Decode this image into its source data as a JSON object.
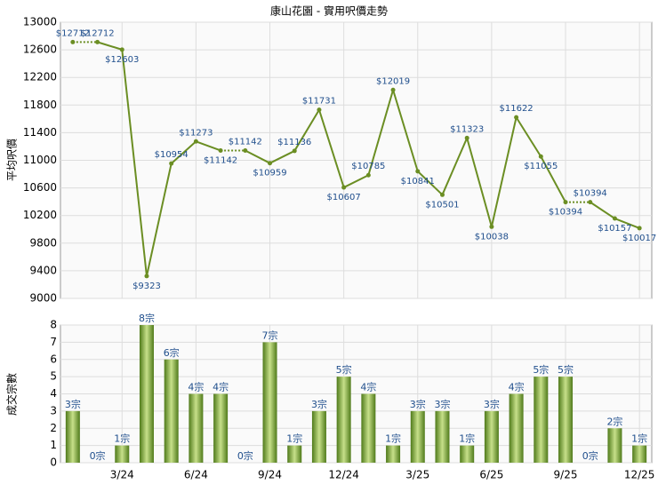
{
  "chart_data": [
    {
      "type": "line",
      "title": "康山花園 - 實用呎價走勢",
      "y_label": "平均呎價",
      "color": "#6b8e23",
      "values": [
        12712,
        12712,
        12603,
        9323,
        10954,
        11273,
        11142,
        11142,
        10959,
        11136,
        11731,
        10607,
        10785,
        12019,
        10841,
        10501,
        11323,
        10038,
        11622,
        11055,
        10394,
        10394,
        10157,
        10017
      ],
      "value_labels": [
        "$12712",
        "$12712",
        "$12603",
        "$9323",
        "$10954",
        "$11273",
        "$11142",
        "$11142",
        "$10959",
        "$11136",
        "$11731",
        "$10607",
        "$10785",
        "$12019",
        "$10841",
        "$10501",
        "$11323",
        "$10038",
        "$11622",
        "$11055",
        "$10394",
        "$10394",
        "$10157",
        "$10017"
      ],
      "ylim": [
        9000,
        13000
      ],
      "yticks": [
        9000,
        9400,
        9800,
        10200,
        10600,
        11000,
        11400,
        11800,
        12200,
        12600,
        13000
      ],
      "grid": true
    },
    {
      "type": "bar",
      "y_label": "成交宗數",
      "color": "#7aa32e",
      "categories": [
        null,
        null,
        "3/24",
        null,
        null,
        "6/24",
        null,
        null,
        "9/24",
        null,
        null,
        "12/24",
        null,
        null,
        "3/25",
        null,
        null,
        "6/25",
        null,
        null,
        "9/25",
        null,
        null,
        "12/25"
      ],
      "values": [
        3,
        0,
        1,
        8,
        6,
        4,
        4,
        0,
        7,
        1,
        3,
        5,
        4,
        1,
        3,
        3,
        1,
        3,
        4,
        5,
        5,
        0,
        2,
        1
      ],
      "value_labels": [
        "3宗",
        "0宗",
        "1宗",
        "8宗",
        "6宗",
        "4宗",
        "4宗",
        "0宗",
        "7宗",
        "1宗",
        "3宗",
        "5宗",
        "4宗",
        "1宗",
        "3宗",
        "3宗",
        "1宗",
        "3宗",
        "4宗",
        "5宗",
        "5宗",
        "0宗",
        "2宗",
        "1宗"
      ],
      "ylim": [
        0,
        8
      ],
      "yticks": [
        0,
        1,
        2,
        3,
        4,
        5,
        6,
        7,
        8
      ],
      "grid": true
    }
  ]
}
